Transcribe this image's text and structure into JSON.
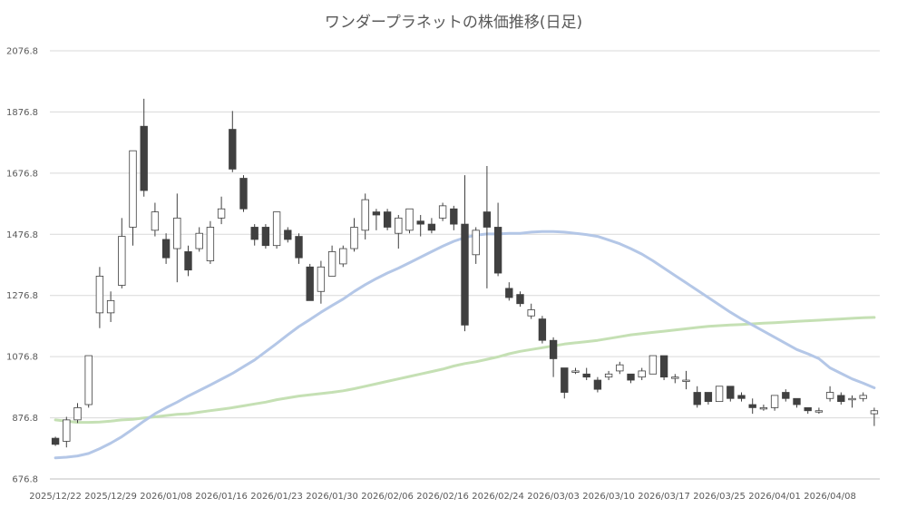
{
  "chart_data": {
    "type": "candlestick",
    "title": "ワンダープラネットの株価推移(日足)",
    "xlabel": "",
    "ylabel": "",
    "ylim": [
      676.8,
      2076.8
    ],
    "y_ticks": [
      676.8,
      876.8,
      1076.8,
      1276.8,
      1476.8,
      1676.8,
      1876.8,
      2076.8
    ],
    "x_tick_labels": [
      "2025/12/22",
      "2025/12/29",
      "2026/01/08",
      "2026/01/16",
      "2026/01/23",
      "2026/01/30",
      "2026/02/06",
      "2026/02/16",
      "2026/02/24",
      "2026/03/03",
      "2026/03/10",
      "2026/03/17",
      "2026/03/25",
      "2026/04/01",
      "2026/04/08"
    ],
    "x_tick_every": 5,
    "grid": true,
    "colors": {
      "up_fill": "#ffffff",
      "down_fill": "#404040",
      "candle_edge": "#404040",
      "ma_short": "#b4c7e7",
      "ma_long": "#c5e0b4"
    },
    "candles": [
      [
        810,
        790,
        815,
        785
      ],
      [
        800,
        870,
        880,
        780
      ],
      [
        870,
        910,
        925,
        860
      ],
      [
        920,
        1080,
        1080,
        910
      ],
      [
        1220,
        1340,
        1370,
        1170
      ],
      [
        1220,
        1260,
        1290,
        1190
      ],
      [
        1310,
        1470,
        1530,
        1300
      ],
      [
        1500,
        1750,
        1750,
        1440
      ],
      [
        1830,
        1620,
        1920,
        1600
      ],
      [
        1490,
        1550,
        1580,
        1470
      ],
      [
        1460,
        1400,
        1480,
        1380
      ],
      [
        1430,
        1530,
        1610,
        1320
      ],
      [
        1420,
        1360,
        1440,
        1340
      ],
      [
        1430,
        1480,
        1500,
        1420
      ],
      [
        1390,
        1500,
        1520,
        1380
      ],
      [
        1530,
        1560,
        1600,
        1510
      ],
      [
        1820,
        1690,
        1880,
        1680
      ],
      [
        1660,
        1560,
        1670,
        1550
      ],
      [
        1500,
        1460,
        1510,
        1440
      ],
      [
        1500,
        1440,
        1510,
        1430
      ],
      [
        1440,
        1550,
        1550,
        1430
      ],
      [
        1490,
        1460,
        1500,
        1450
      ],
      [
        1470,
        1400,
        1480,
        1380
      ],
      [
        1370,
        1260,
        1380,
        1260
      ],
      [
        1290,
        1370,
        1390,
        1250
      ],
      [
        1340,
        1420,
        1440,
        1340
      ],
      [
        1380,
        1430,
        1440,
        1370
      ],
      [
        1430,
        1500,
        1530,
        1420
      ],
      [
        1490,
        1590,
        1610,
        1460
      ],
      [
        1550,
        1540,
        1560,
        1490
      ],
      [
        1550,
        1500,
        1560,
        1490
      ],
      [
        1480,
        1530,
        1540,
        1430
      ],
      [
        1490,
        1560,
        1560,
        1480
      ],
      [
        1520,
        1510,
        1540,
        1470
      ],
      [
        1510,
        1490,
        1530,
        1480
      ],
      [
        1530,
        1570,
        1580,
        1520
      ],
      [
        1560,
        1510,
        1570,
        1490
      ],
      [
        1510,
        1180,
        1670,
        1160
      ],
      [
        1410,
        1490,
        1500,
        1380
      ],
      [
        1550,
        1500,
        1700,
        1300
      ],
      [
        1500,
        1350,
        1580,
        1340
      ],
      [
        1300,
        1270,
        1320,
        1260
      ],
      [
        1280,
        1250,
        1290,
        1240
      ],
      [
        1210,
        1230,
        1250,
        1200
      ],
      [
        1200,
        1130,
        1210,
        1120
      ],
      [
        1130,
        1070,
        1140,
        1010
      ],
      [
        1040,
        960,
        1040,
        940
      ],
      [
        1030,
        1030,
        1040,
        1020
      ],
      [
        1020,
        1010,
        1040,
        1000
      ],
      [
        1000,
        970,
        1010,
        960
      ],
      [
        1010,
        1020,
        1030,
        1000
      ],
      [
        1030,
        1050,
        1060,
        1020
      ],
      [
        1020,
        1000,
        1020,
        990
      ],
      [
        1010,
        1030,
        1040,
        1000
      ],
      [
        1020,
        1080,
        1080,
        1020
      ],
      [
        1080,
        1010,
        1080,
        1000
      ],
      [
        1010,
        1010,
        1020,
        990
      ],
      [
        1000,
        1000,
        1030,
        970
      ],
      [
        960,
        920,
        980,
        910
      ],
      [
        960,
        930,
        960,
        920
      ],
      [
        930,
        980,
        980,
        930
      ],
      [
        980,
        940,
        980,
        930
      ],
      [
        950,
        940,
        960,
        930
      ],
      [
        920,
        910,
        940,
        890
      ],
      [
        910,
        910,
        920,
        900
      ],
      [
        910,
        950,
        950,
        900
      ],
      [
        960,
        940,
        970,
        930
      ],
      [
        940,
        920,
        940,
        910
      ],
      [
        910,
        900,
        910,
        890
      ],
      [
        900,
        900,
        910,
        890
      ],
      [
        940,
        960,
        980,
        930
      ],
      [
        950,
        930,
        960,
        920
      ],
      [
        940,
        940,
        950,
        910
      ],
      [
        940,
        950,
        960,
        930
      ],
      [
        890,
        900,
        910,
        850
      ]
    ],
    "ma_short": [
      746,
      748,
      752,
      760,
      776,
      794,
      815,
      840,
      866,
      890,
      910,
      928,
      948,
      966,
      984,
      1003,
      1022,
      1044,
      1066,
      1093,
      1120,
      1148,
      1175,
      1198,
      1222,
      1244,
      1265,
      1290,
      1312,
      1332,
      1350,
      1366,
      1384,
      1402,
      1420,
      1438,
      1454,
      1466,
      1474,
      1478,
      1478,
      1480,
      1480,
      1484,
      1486,
      1486,
      1484,
      1480,
      1476,
      1470,
      1458,
      1446,
      1430,
      1412,
      1390,
      1366,
      1342,
      1318,
      1294,
      1270,
      1246,
      1222,
      1200,
      1180,
      1160,
      1140,
      1120,
      1100,
      1086,
      1070,
      1040,
      1022,
      1004,
      990,
      975
    ],
    "ma_long": [
      870,
      866,
      862,
      862,
      863,
      866,
      870,
      872,
      876,
      880,
      884,
      888,
      890,
      895,
      900,
      905,
      910,
      916,
      922,
      928,
      936,
      942,
      948,
      952,
      956,
      960,
      965,
      972,
      980,
      988,
      996,
      1004,
      1012,
      1020,
      1028,
      1036,
      1046,
      1054,
      1060,
      1068,
      1076,
      1086,
      1094,
      1100,
      1106,
      1112,
      1118,
      1122,
      1126,
      1130,
      1136,
      1142,
      1148,
      1152,
      1156,
      1160,
      1164,
      1168,
      1172,
      1176,
      1178,
      1180,
      1182,
      1184,
      1186,
      1188,
      1190,
      1192,
      1194,
      1196,
      1198,
      1200,
      1202,
      1204,
      1205
    ]
  }
}
